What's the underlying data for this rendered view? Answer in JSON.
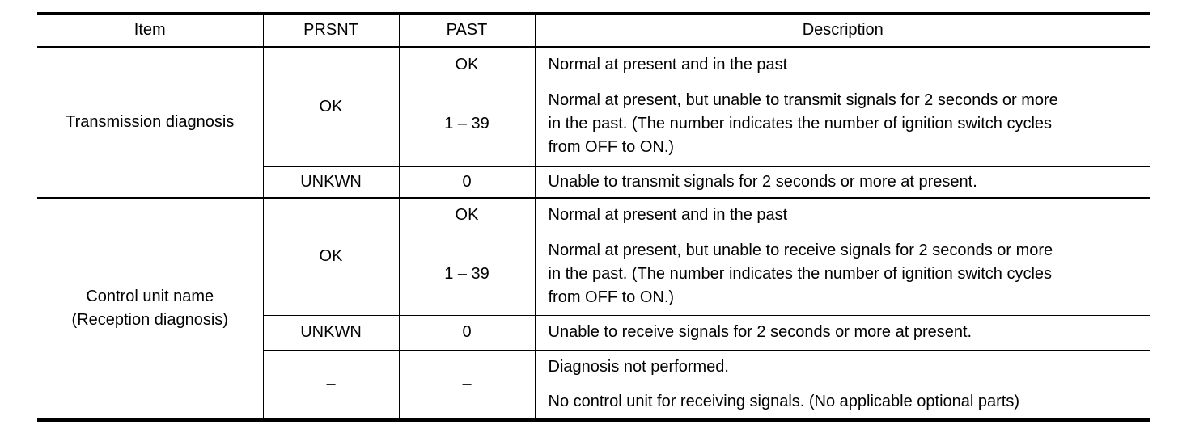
{
  "headers": {
    "item": "Item",
    "prsnt": "PRSNT",
    "past": "PAST",
    "description": "Description"
  },
  "transmission": {
    "item": "Transmission diagnosis",
    "prsnt_ok": "OK",
    "past_ok": "OK",
    "desc_ok": "Normal at present and in the past",
    "past_range": "1 – 39",
    "desc_range": [
      "Normal at present, but unable to transmit signals for 2 seconds or more",
      "in the past. (The number indicates the number of ignition switch cycles",
      "from OFF to ON.)"
    ],
    "prsnt_unkwn": "UNKWN",
    "past_zero": "0",
    "desc_unkwn": "Unable to transmit signals for 2 seconds or more at present."
  },
  "reception": {
    "item": [
      "Control unit name",
      "(Reception diagnosis)"
    ],
    "prsnt_ok": "OK",
    "past_ok": "OK",
    "desc_ok": "Normal at present and in the past",
    "past_range": "1 – 39",
    "desc_range": [
      "Normal at present, but unable to receive signals for 2 seconds or more",
      "in the past. (The number indicates the number of ignition switch cycles",
      "from OFF to ON.)"
    ],
    "prsnt_unkwn": "UNKWN",
    "past_zero": "0",
    "desc_unkwn": "Unable to receive signals for 2 seconds or more at present.",
    "prsnt_dash": "–",
    "past_dash": "–",
    "desc_not_performed": "Diagnosis not performed.",
    "desc_no_unit": "No control unit for receiving signals. (No applicable optional parts)"
  }
}
